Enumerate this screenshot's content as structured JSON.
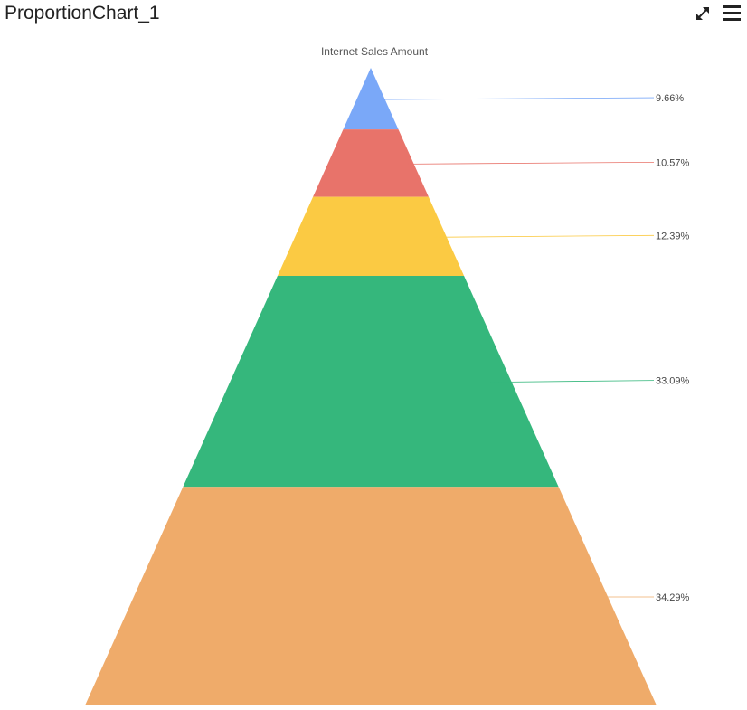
{
  "header": {
    "title": "ProportionChart_1",
    "icons": {
      "maximize": "expand-arrows-icon",
      "menu": "hamburger-menu-icon"
    }
  },
  "chart_data": {
    "type": "pyramid",
    "title": "Internet Sales Amount",
    "series": [
      {
        "label": "9.66%",
        "value": 9.66,
        "color": "#7aa8f8"
      },
      {
        "label": "10.57%",
        "value": 10.57,
        "color": "#e8736a"
      },
      {
        "label": "12.39%",
        "value": 12.39,
        "color": "#fbca43"
      },
      {
        "label": "33.09%",
        "value": 33.09,
        "color": "#35b77c"
      },
      {
        "label": "34.29%",
        "value": 34.29,
        "color": "#efab6a"
      }
    ],
    "legend": "none",
    "data_labels": "right"
  }
}
